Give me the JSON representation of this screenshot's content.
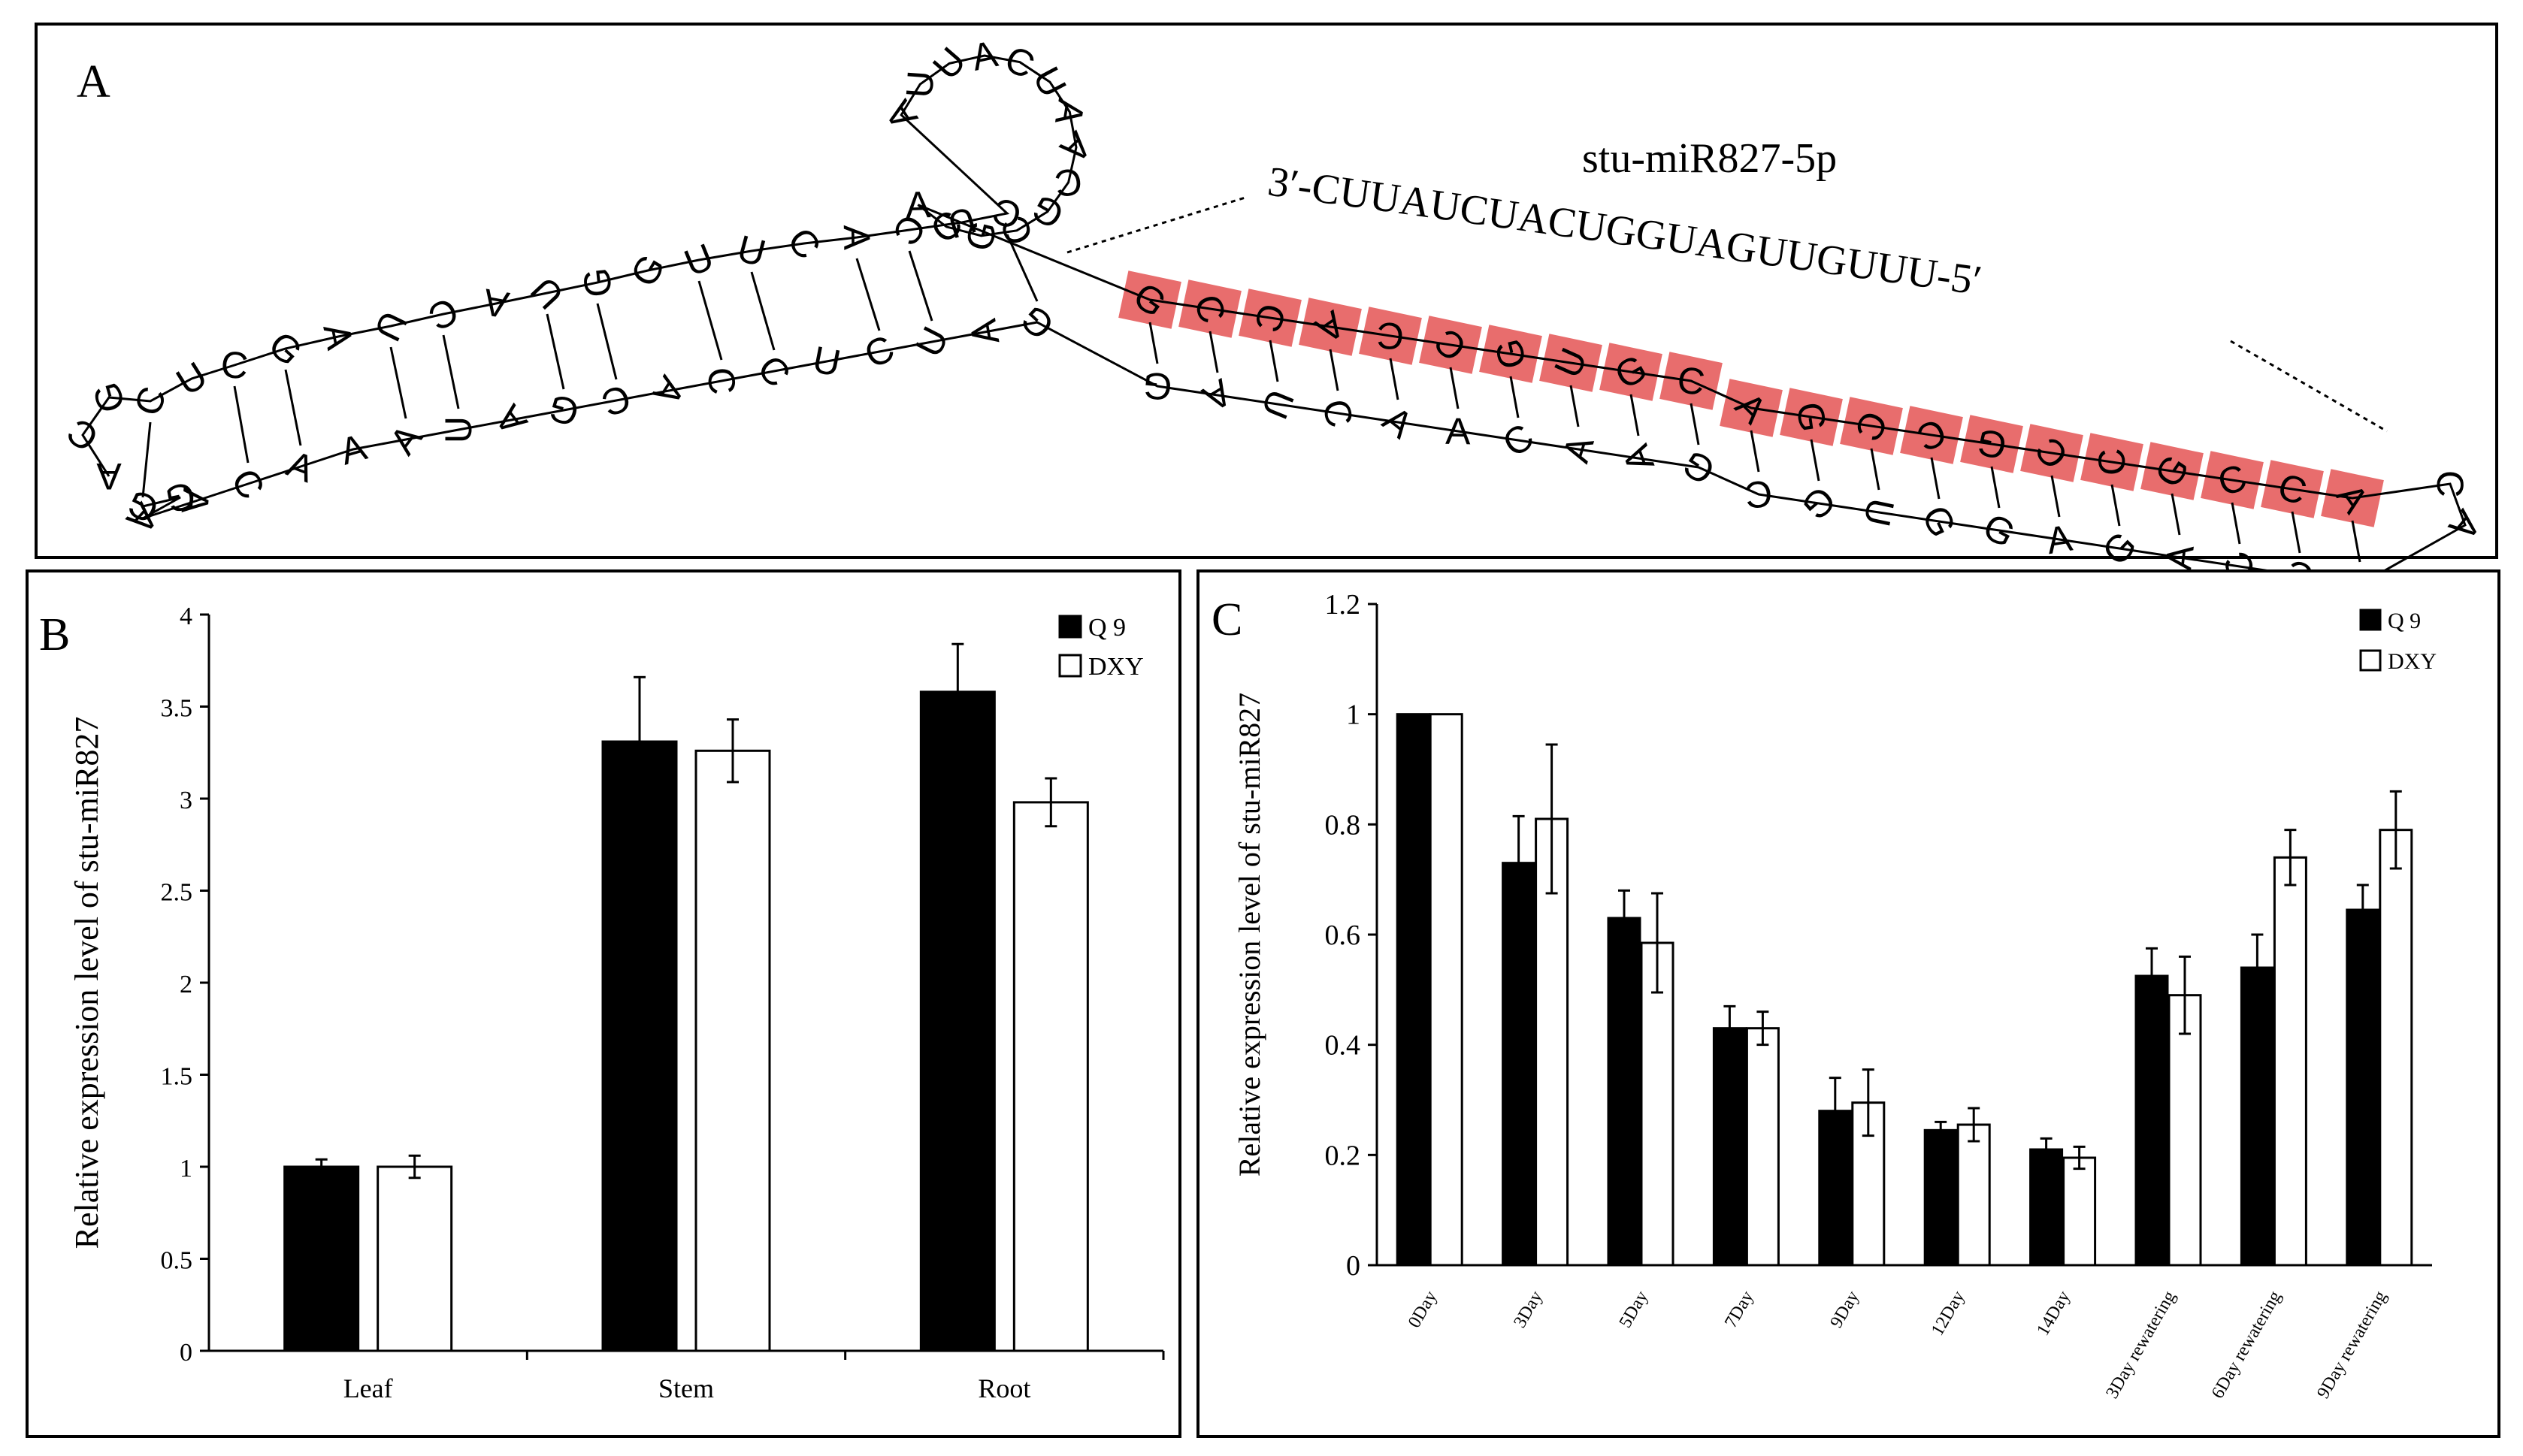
{
  "figure": {
    "panel_a": {
      "letter": "A",
      "mirna_name": "stu-miR827-5p",
      "mirna_sequence": "3′-CUUAUCUACUGGUAGUUGUUU-5′",
      "upper_strand": "ACGCUCGAUCAUGGUUCACUCAUUACUAACGCGCAGCCACCGUGCAGCCGCCGCC",
      "lower_strand": "ACAGCCAGAGGUGCGAACAACUAGGAUCUCCACGAUAAACAAGGAAACACGAGUAAC",
      "highlight_color": "#e45454"
    },
    "panel_b": {
      "letter": "B"
    },
    "panel_c": {
      "letter": "C"
    }
  },
  "chart_data": [
    {
      "type": "bar",
      "panel": "B",
      "ylabel": "Relative expression level of  stu-miR827",
      "xlabel": "",
      "ylim": [
        0,
        4
      ],
      "yticks": [
        "0",
        "0.5",
        "1",
        "1.5",
        "2",
        "2.5",
        "3",
        "3.5",
        "4"
      ],
      "categories": [
        "Leaf",
        "Stem",
        "Root"
      ],
      "series": [
        {
          "name": "Q 9",
          "color": "#000000",
          "values": [
            1.0,
            3.31,
            3.58
          ],
          "errors": [
            0.04,
            0.35,
            0.26
          ]
        },
        {
          "name": "DXY",
          "color": "#ffffff",
          "values": [
            1.0,
            3.26,
            2.98
          ],
          "errors": [
            0.06,
            0.17,
            0.13
          ]
        }
      ],
      "legend": "top-right",
      "grid": false
    },
    {
      "type": "bar",
      "panel": "C",
      "ylabel": "Relative expression level of stu-miR827",
      "xlabel": "",
      "ylim": [
        0,
        1.2
      ],
      "yticks": [
        "0",
        "0.2",
        "0.4",
        "0.6",
        "0.8",
        "1",
        "1.2"
      ],
      "categories": [
        "0Day",
        "3Day",
        "5Day",
        "7Day",
        "9Day",
        "12Day",
        "14Day",
        "3Day rewatering",
        "6Day rewatering",
        "9Day rewatering"
      ],
      "series": [
        {
          "name": "Q 9",
          "color": "#000000",
          "values": [
            1.0,
            0.73,
            0.63,
            0.43,
            0.28,
            0.245,
            0.21,
            0.525,
            0.54,
            0.645
          ],
          "errors": [
            0,
            0.085,
            0.05,
            0.04,
            0.06,
            0.015,
            0.02,
            0.05,
            0.06,
            0.045
          ]
        },
        {
          "name": "DXY",
          "color": "#ffffff",
          "values": [
            1.0,
            0.81,
            0.585,
            0.43,
            0.295,
            0.255,
            0.195,
            0.49,
            0.74,
            0.79
          ],
          "errors": [
            0,
            0.135,
            0.09,
            0.03,
            0.06,
            0.03,
            0.02,
            0.07,
            0.05,
            0.07
          ]
        }
      ],
      "legend": "top-right",
      "grid": false
    }
  ]
}
